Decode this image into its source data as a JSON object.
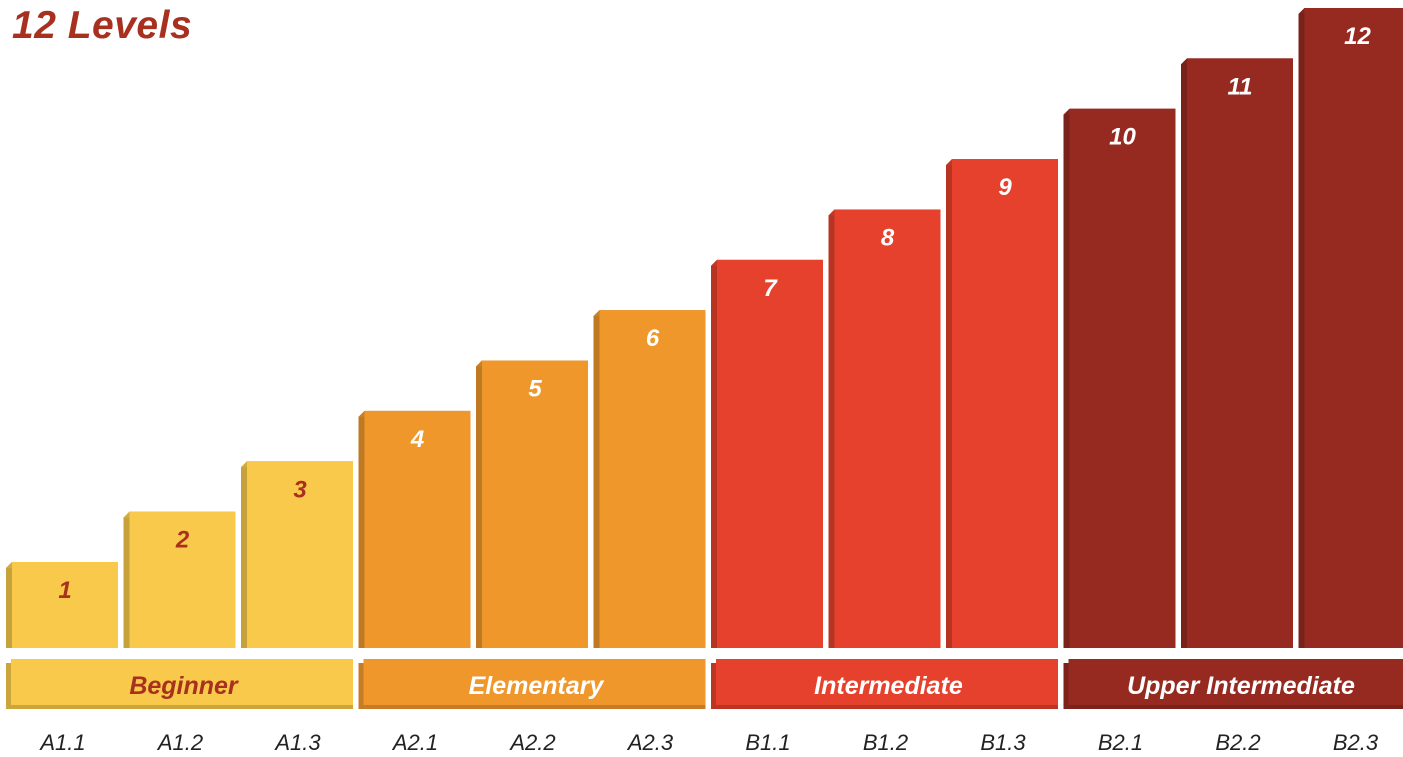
{
  "chart_data": {
    "type": "bar",
    "title": "12 Levels",
    "categories": [
      "A1.1",
      "A1.2",
      "A1.3",
      "A2.1",
      "A2.2",
      "A2.3",
      "B1.1",
      "B1.2",
      "B1.3",
      "B2.1",
      "B2.2",
      "B2.3"
    ],
    "values": [
      1,
      2,
      3,
      4,
      5,
      6,
      7,
      8,
      9,
      10,
      11,
      12
    ],
    "bar_labels": [
      "1",
      "2",
      "3",
      "4",
      "5",
      "6",
      "7",
      "8",
      "9",
      "10",
      "11",
      "12"
    ],
    "ylim": [
      0,
      12
    ],
    "grid": false,
    "groups": [
      {
        "name": "Beginner",
        "start": 0,
        "end": 2,
        "color": "#f9c94b",
        "label_color": "#a8301f",
        "bar_label_color": "#a8301f"
      },
      {
        "name": "Elementary",
        "start": 3,
        "end": 5,
        "color": "#f0972c",
        "label_color": "#ffffff",
        "bar_label_color": "#ffffff"
      },
      {
        "name": "Intermediate",
        "start": 6,
        "end": 8,
        "color": "#e5412c",
        "label_color": "#ffffff",
        "bar_label_color": "#ffffff"
      },
      {
        "name": "Upper Intermediate",
        "start": 9,
        "end": 11,
        "color": "#962a20",
        "label_color": "#ffffff",
        "bar_label_color": "#ffffff"
      }
    ]
  }
}
